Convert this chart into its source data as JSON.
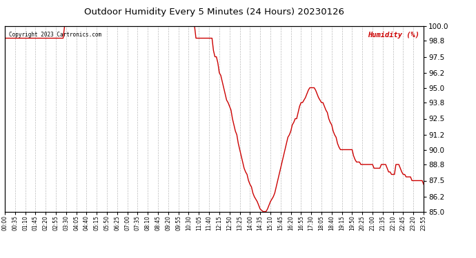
{
  "title": "Outdoor Humidity Every 5 Minutes (24 Hours) 20230126",
  "copyright_text": "Copyright 2023 Cartronics.com",
  "legend_text": "Humidity (%)",
  "background_color": "#ffffff",
  "plot_bg_color": "#ffffff",
  "line_color": "#cc0000",
  "grid_color": "#bbbbbb",
  "title_color": "#000000",
  "legend_color": "#cc0000",
  "copyright_color": "#000000",
  "ylim": [
    85.0,
    100.0
  ],
  "yticks": [
    85.0,
    86.2,
    87.5,
    88.8,
    90.0,
    91.2,
    92.5,
    93.8,
    95.0,
    96.2,
    97.5,
    98.8,
    100.0
  ],
  "humidity": [
    99.0,
    99.0,
    99.0,
    99.0,
    99.0,
    99.0,
    99.0,
    99.0,
    99.0,
    99.0,
    99.0,
    99.0,
    99.0,
    99.0,
    99.0,
    99.0,
    99.0,
    99.0,
    99.0,
    99.0,
    99.0,
    99.0,
    99.0,
    99.0,
    99.0,
    99.0,
    99.0,
    99.0,
    99.0,
    99.0,
    99.0,
    99.0,
    99.0,
    99.0,
    99.0,
    99.0,
    99.0,
    99.0,
    99.0,
    99.0,
    99.0,
    100.0,
    100.0,
    100.0,
    100.0,
    100.0,
    100.0,
    100.0,
    100.0,
    100.0,
    100.0,
    100.0,
    100.0,
    100.0,
    100.0,
    100.0,
    100.0,
    100.0,
    100.0,
    100.0,
    100.0,
    100.0,
    100.0,
    100.0,
    100.0,
    100.0,
    100.0,
    100.0,
    100.0,
    100.0,
    100.0,
    100.0,
    100.0,
    100.0,
    100.0,
    100.0,
    100.0,
    100.0,
    100.0,
    100.0,
    100.0,
    100.0,
    100.0,
    100.0,
    100.0,
    100.0,
    100.0,
    100.0,
    100.0,
    100.0,
    100.0,
    100.0,
    100.0,
    100.0,
    100.0,
    100.0,
    100.0,
    100.0,
    100.0,
    100.0,
    100.0,
    100.0,
    100.0,
    100.0,
    100.0,
    100.0,
    100.0,
    100.0,
    100.0,
    100.0,
    100.0,
    100.0,
    100.0,
    100.0,
    100.0,
    100.0,
    100.0,
    100.0,
    100.0,
    100.0,
    100.0,
    100.0,
    100.0,
    100.0,
    100.0,
    100.0,
    100.0,
    100.0,
    100.0,
    100.0,
    100.0,
    99.0,
    99.0,
    99.0,
    99.0,
    99.0,
    99.0,
    99.0,
    99.0,
    99.0,
    99.0,
    99.0,
    99.0,
    98.0,
    97.5,
    97.5,
    97.0,
    96.2,
    96.0,
    95.5,
    95.0,
    94.5,
    94.0,
    93.8,
    93.5,
    93.2,
    92.5,
    92.0,
    91.5,
    91.2,
    90.5,
    90.0,
    89.5,
    89.0,
    88.5,
    88.2,
    88.0,
    87.5,
    87.2,
    87.0,
    86.5,
    86.2,
    86.0,
    85.8,
    85.5,
    85.2,
    85.1,
    85.0,
    85.0,
    85.0,
    85.2,
    85.5,
    85.8,
    86.0,
    86.2,
    86.5,
    87.0,
    87.5,
    88.0,
    88.5,
    89.0,
    89.5,
    90.0,
    90.5,
    91.0,
    91.2,
    91.5,
    92.0,
    92.2,
    92.5,
    92.5,
    93.0,
    93.5,
    93.8,
    93.8,
    94.0,
    94.2,
    94.5,
    94.8,
    95.0,
    95.0,
    95.0,
    95.0,
    94.8,
    94.5,
    94.2,
    94.0,
    93.8,
    93.8,
    93.5,
    93.2,
    93.0,
    92.5,
    92.2,
    92.0,
    91.5,
    91.2,
    91.0,
    90.5,
    90.2,
    90.0,
    90.0,
    90.0,
    90.0,
    90.0,
    90.0,
    90.0,
    90.0,
    90.0,
    89.5,
    89.2,
    89.0,
    89.0,
    89.0,
    88.8,
    88.8,
    88.8,
    88.8,
    88.8,
    88.8,
    88.8,
    88.8,
    88.8,
    88.5,
    88.5,
    88.5,
    88.5,
    88.5,
    88.8,
    88.8,
    88.8,
    88.8,
    88.5,
    88.2,
    88.2,
    88.0,
    88.0,
    88.0,
    88.8,
    88.8,
    88.8,
    88.5,
    88.2,
    88.0,
    88.0,
    87.8,
    87.8,
    87.8,
    87.8,
    87.5,
    87.5,
    87.5,
    87.5,
    87.5,
    87.5,
    87.5,
    87.5,
    87.2
  ],
  "xtick_indices": [
    0,
    7,
    14,
    21,
    28,
    35,
    42,
    49,
    56,
    63,
    70,
    77,
    84,
    91,
    98,
    105,
    112,
    119,
    126,
    133,
    140,
    147,
    154,
    161,
    168,
    175,
    182,
    189,
    196,
    203,
    210,
    217,
    224,
    231,
    238,
    245,
    252,
    259,
    266,
    273,
    280,
    287
  ],
  "xtick_labels": [
    "00:00",
    "00:35",
    "01:10",
    "01:45",
    "02:20",
    "02:55",
    "03:30",
    "04:05",
    "04:40",
    "05:15",
    "05:50",
    "06:25",
    "07:00",
    "07:35",
    "08:10",
    "08:45",
    "09:20",
    "09:55",
    "10:30",
    "11:05",
    "11:40",
    "12:15",
    "12:50",
    "13:25",
    "14:00",
    "14:35",
    "15:10",
    "15:45",
    "16:20",
    "16:55",
    "17:30",
    "18:05",
    "18:40",
    "19:15",
    "19:50",
    "20:25",
    "21:00",
    "21:35",
    "22:10",
    "22:45",
    "23:20",
    "23:55"
  ],
  "figsize": [
    6.9,
    3.75
  ],
  "dpi": 100
}
